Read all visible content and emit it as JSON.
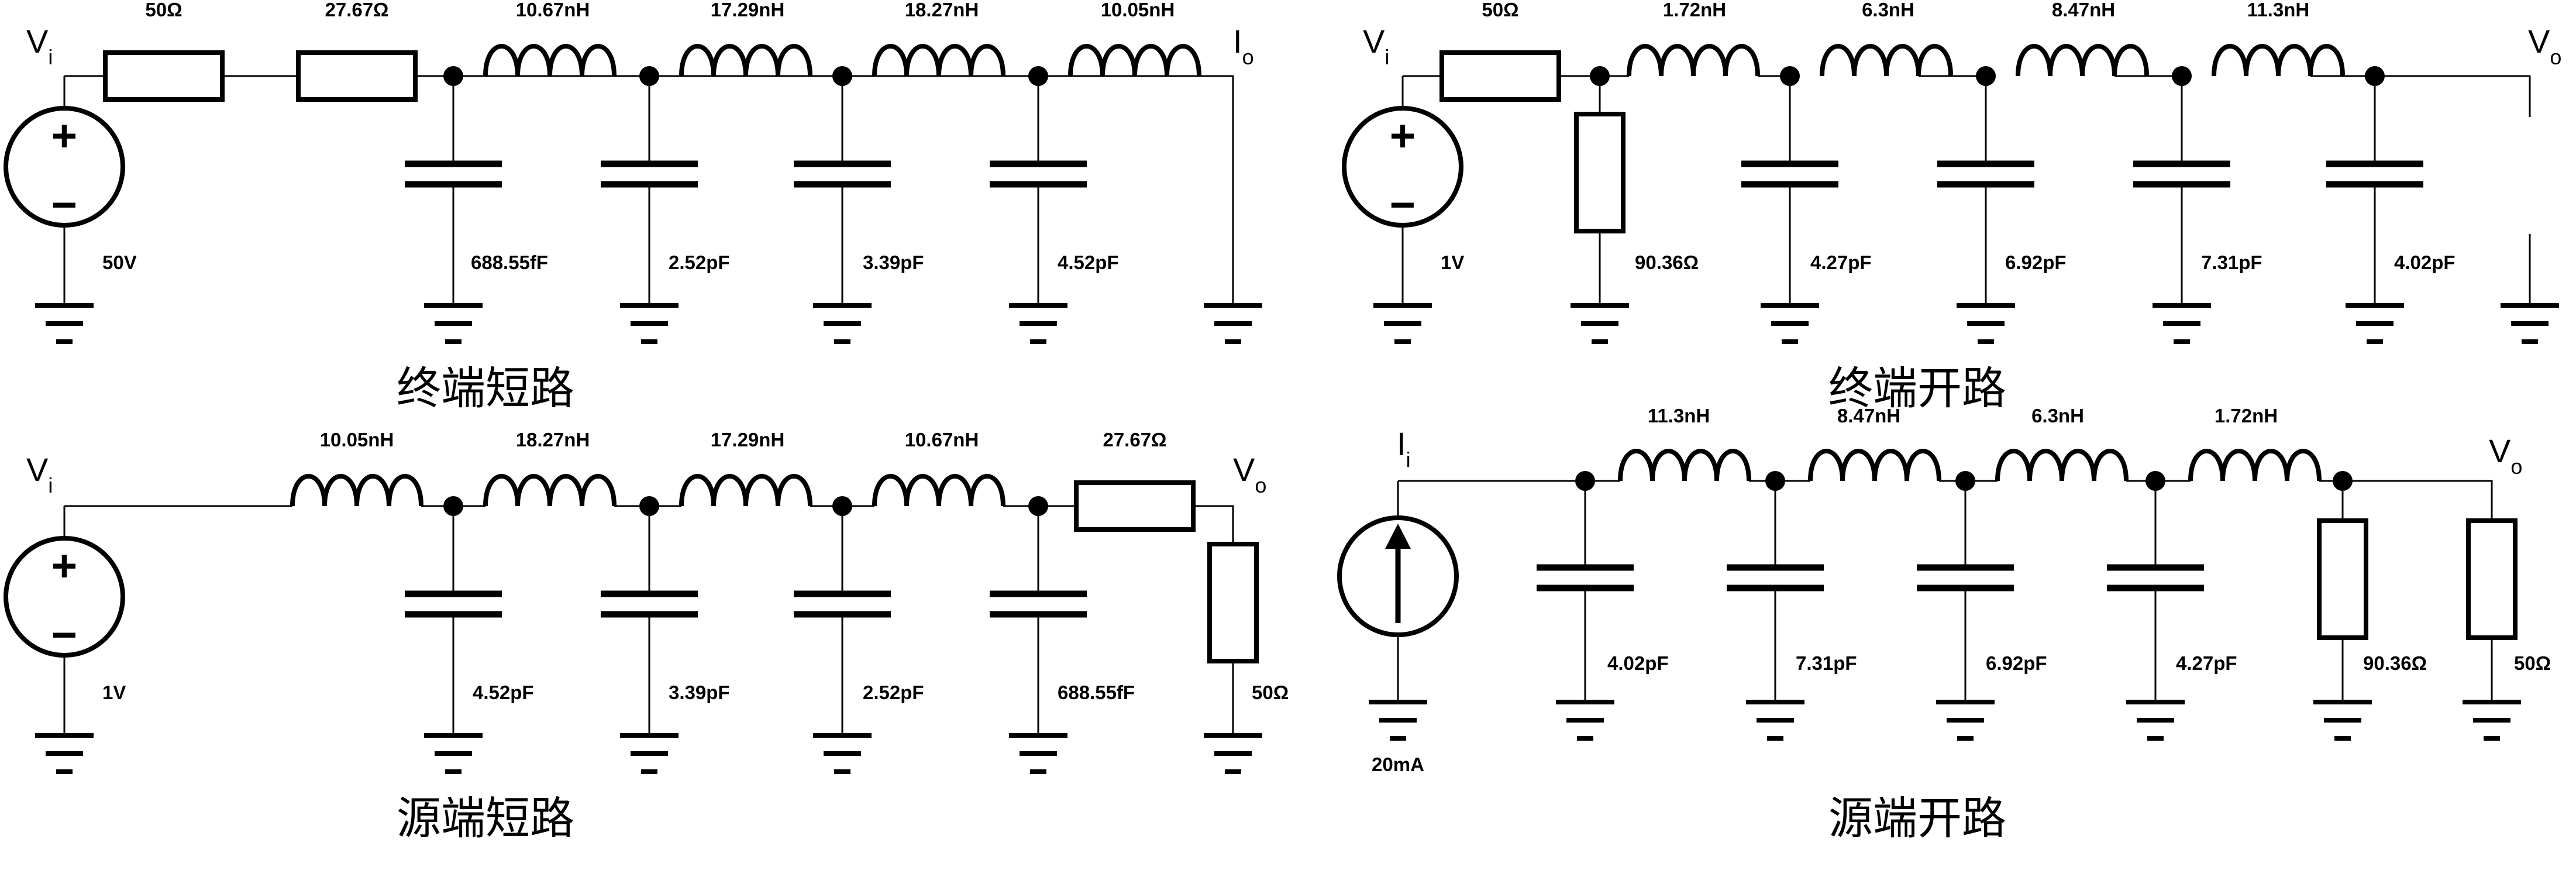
{
  "circuits": [
    {
      "caption": "终端短路",
      "input_node": {
        "main": "V",
        "sub": "i"
      },
      "output_node": {
        "main": "I",
        "sub": "o"
      },
      "source": {
        "kind": "voltage",
        "value": "50V"
      },
      "series": [
        "50Ω",
        "27.67Ω",
        "10.67nH",
        "17.29nH",
        "18.27nH",
        "10.05nH"
      ],
      "shunt": [
        "688.55fF",
        "2.52pF",
        "3.39pF",
        "4.52pF"
      ]
    },
    {
      "caption": "终端开路",
      "input_node": {
        "main": "V",
        "sub": "i"
      },
      "output_node": {
        "main": "V",
        "sub": "o"
      },
      "source": {
        "kind": "voltage",
        "value": "1V"
      },
      "series": [
        "50Ω",
        "1.72nH",
        "6.3nH",
        "8.47nH",
        "11.3nH"
      ],
      "shunt": [
        "90.36Ω",
        "4.27pF",
        "6.92pF",
        "7.31pF",
        "4.02pF"
      ]
    },
    {
      "caption": "源端短路",
      "input_node": {
        "main": "V",
        "sub": "i"
      },
      "output_node": {
        "main": "V",
        "sub": "o"
      },
      "source": {
        "kind": "voltage",
        "value": "1V"
      },
      "series": [
        "10.05nH",
        "18.27nH",
        "17.29nH",
        "10.67nH",
        "27.67Ω"
      ],
      "shunt": [
        "4.52pF",
        "3.39pF",
        "2.52pF",
        "688.55fF",
        "50Ω"
      ]
    },
    {
      "caption": "源端开路",
      "input_node": {
        "main": "I",
        "sub": "i"
      },
      "output_node": {
        "main": "V",
        "sub": "o"
      },
      "source": {
        "kind": "current",
        "value": "20mA"
      },
      "series": [
        "11.3nH",
        "8.47nH",
        "6.3nH",
        "1.72nH"
      ],
      "shunt": [
        "4.02pF",
        "7.31pF",
        "6.92pF",
        "4.27pF",
        "90.36Ω",
        "50Ω"
      ]
    }
  ]
}
